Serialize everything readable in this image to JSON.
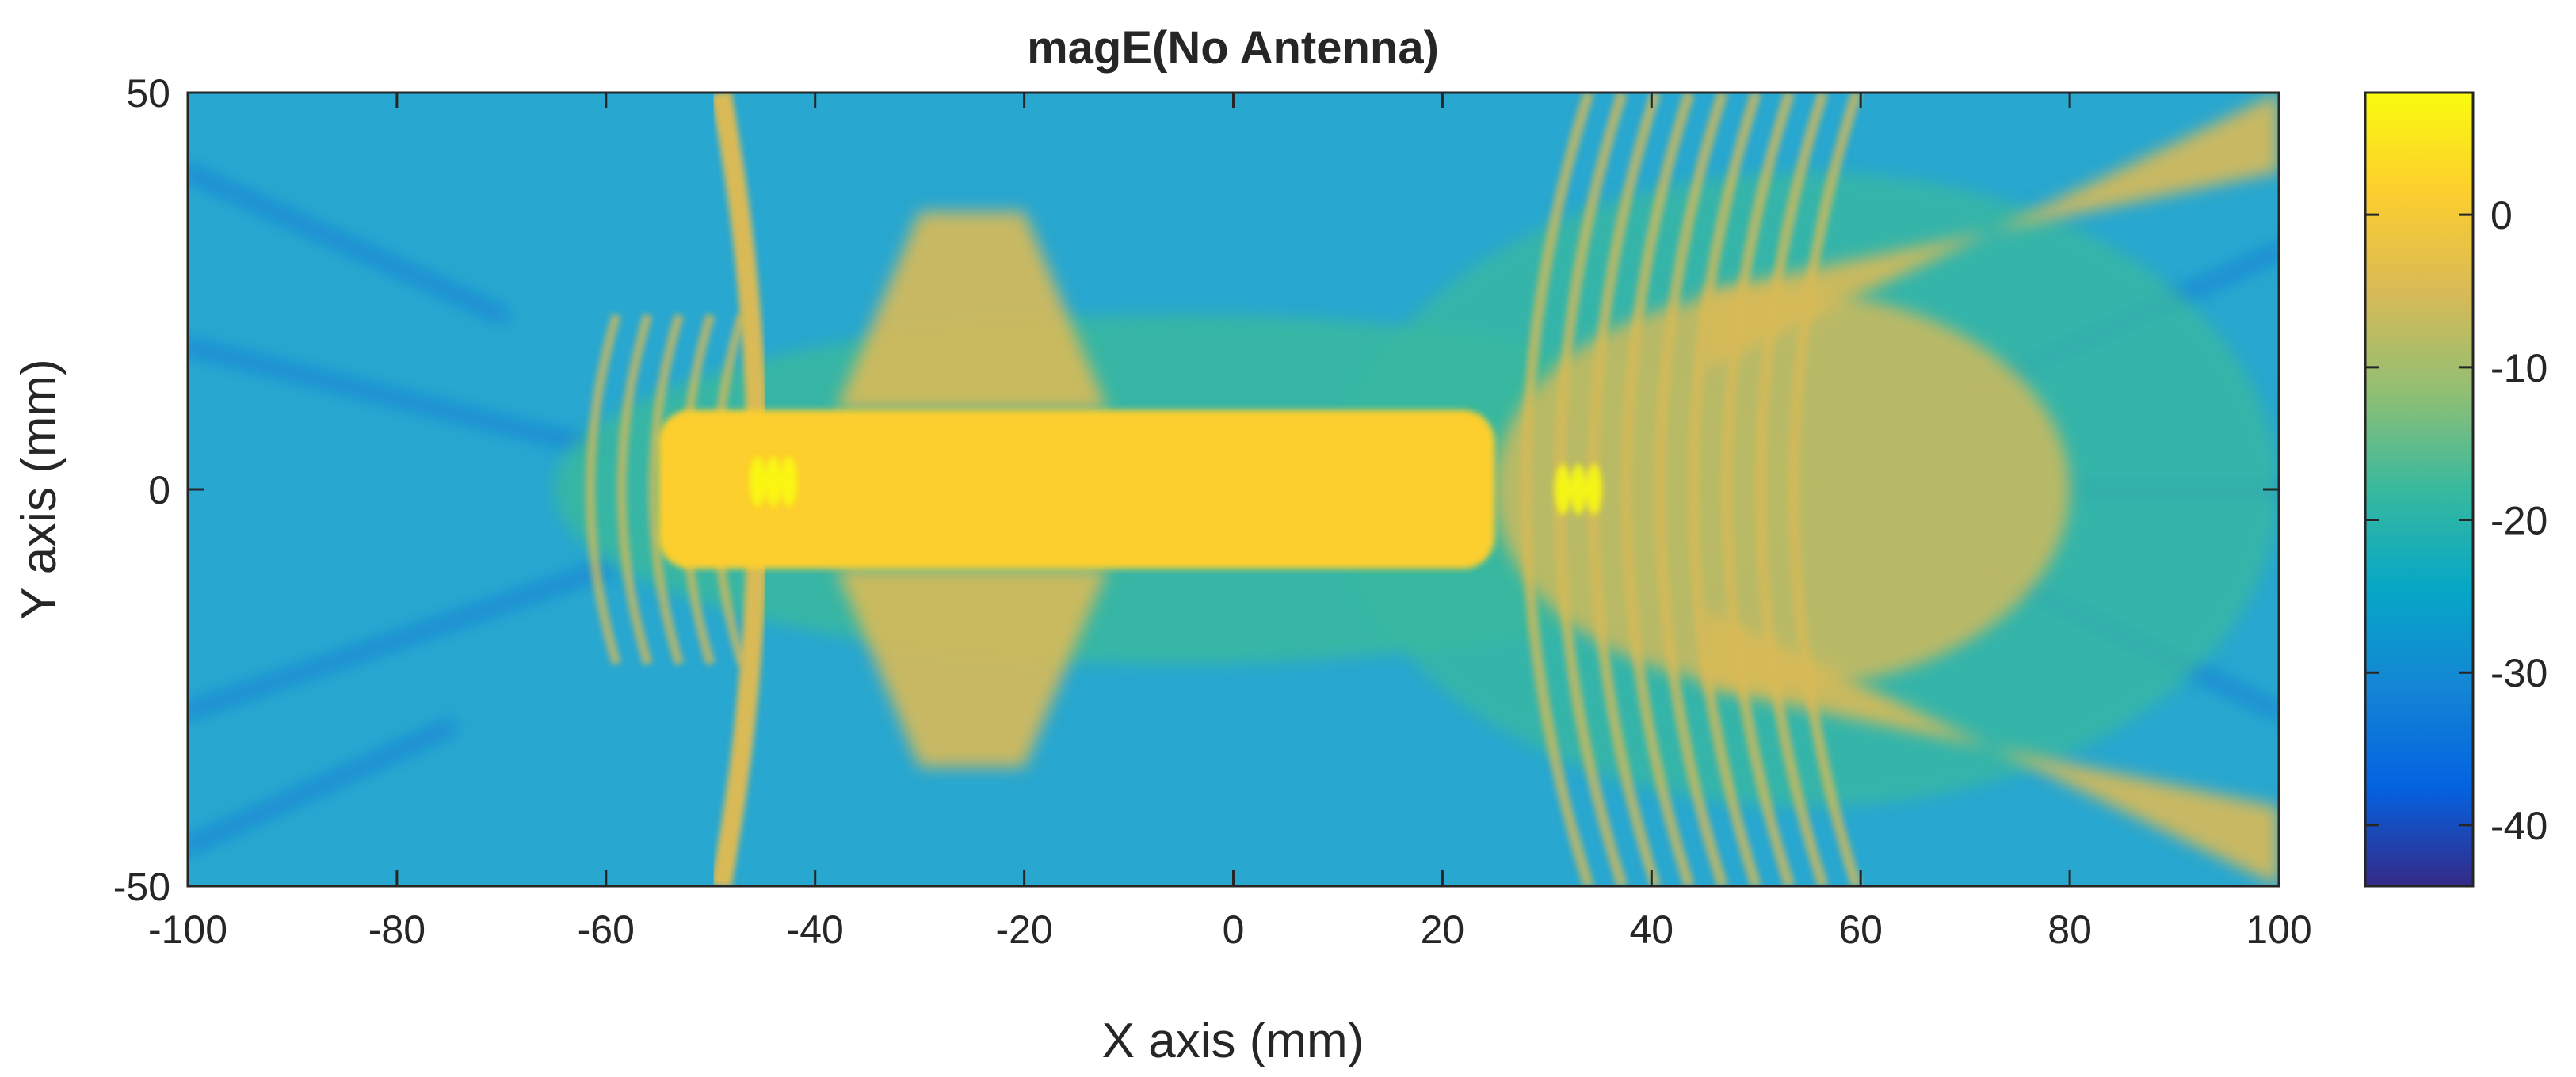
{
  "chart_data": {
    "type": "heatmap",
    "title": "magE(No Antenna)",
    "xlabel": "X axis (mm)",
    "ylabel": "Y axis (mm)",
    "xlim": [
      -100,
      100
    ],
    "ylim": [
      -50,
      50
    ],
    "x_ticks": [
      -100,
      -80,
      -60,
      -40,
      -20,
      0,
      20,
      40,
      60,
      80,
      100
    ],
    "y_ticks": [
      -50,
      0,
      50
    ],
    "x_tick_labels": [
      "-100",
      "-80",
      "-60",
      "-40",
      "-20",
      "0",
      "20",
      "40",
      "60",
      "80",
      "100"
    ],
    "y_tick_labels": [
      "-50",
      "0",
      "50"
    ],
    "grid": false,
    "colorbar": {
      "orientation": "vertical",
      "placement": "right",
      "clim": [
        -44,
        8
      ],
      "ticks": [
        0,
        -10,
        -20,
        -30,
        -40
      ],
      "tick_labels": [
        "0",
        "-10",
        "-20",
        "-30",
        "-40"
      ],
      "colormap": "parula",
      "colors": [
        "#352a87",
        "#0363e1",
        "#1485d4",
        "#06a7c6",
        "#38b99e",
        "#92bf73",
        "#d9ba56",
        "#fcce2e",
        "#f9fb0e"
      ]
    },
    "field_regions": [
      {
        "name": "background",
        "x_range": [
          -100,
          100
        ],
        "y_range": [
          -50,
          50
        ],
        "value": -22
      },
      {
        "name": "central-beam",
        "x_range": [
          -55,
          25
        ],
        "y_range": [
          -10,
          10
        ],
        "value": 0
      },
      {
        "name": "left-arc",
        "x_center": -47,
        "y_range": [
          -50,
          50
        ],
        "value": -2
      },
      {
        "name": "upper-lobe",
        "x_range": [
          -30,
          -20
        ],
        "y_range": [
          10,
          35
        ],
        "value": -5
      },
      {
        "name": "lower-lobe",
        "x_range": [
          -30,
          -20
        ],
        "y_range": [
          -35,
          -10
        ],
        "value": -5
      },
      {
        "name": "right-fringes",
        "x_range": [
          25,
          80
        ],
        "y_range": [
          -40,
          40
        ],
        "value": -4
      },
      {
        "name": "upper-right-ray",
        "x_range": [
          45,
          100
        ],
        "y_range": [
          20,
          50
        ],
        "value": -8
      },
      {
        "name": "lower-right-ray",
        "x_range": [
          45,
          100
        ],
        "y_range": [
          -50,
          -20
        ],
        "value": -8
      },
      {
        "name": "left-hotspot",
        "x": -44,
        "y": 1,
        "value": 8
      },
      {
        "name": "right-hotspot",
        "x": 33,
        "y": 0,
        "value": 8
      }
    ]
  }
}
